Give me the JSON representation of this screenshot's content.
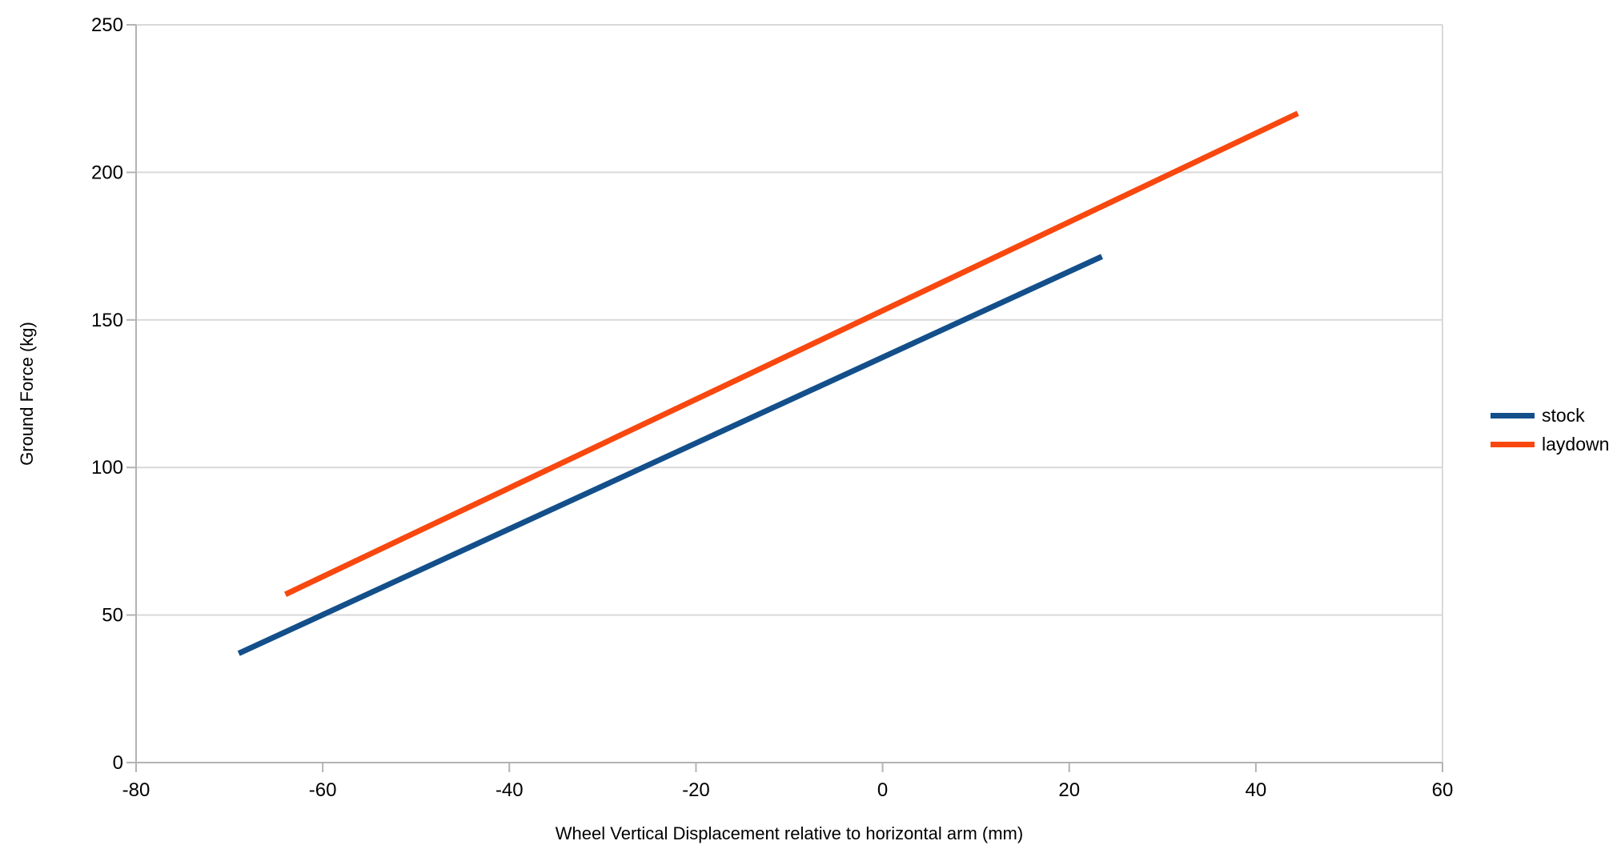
{
  "chart_data": {
    "type": "line",
    "title": "",
    "xlabel": "Wheel Vertical Displacement relative to horizontal arm (mm)",
    "ylabel": "Ground Force (kg)",
    "xlim": [
      -80,
      60
    ],
    "ylim": [
      0,
      250
    ],
    "x_ticks": [
      -80,
      -60,
      -40,
      -20,
      0,
      20,
      40,
      60
    ],
    "y_ticks": [
      0,
      50,
      100,
      150,
      200,
      250
    ],
    "grid": "horizontal-only",
    "legend_position": "right",
    "legend_entries": [
      "stock",
      "laydown"
    ],
    "series": [
      {
        "name": "stock",
        "color": "#134f8a",
        "points": [
          [
            -69,
            37
          ],
          [
            23.5,
            171.5
          ]
        ]
      },
      {
        "name": "laydown",
        "color": "#f8480f",
        "points": [
          [
            -64,
            57
          ],
          [
            44.5,
            220
          ]
        ]
      }
    ],
    "line_width": 7,
    "colors": {
      "background": "#ffffff",
      "gridline": "#d9d9d9",
      "axis": "#b3b3b3",
      "tick_text": "#000000"
    }
  }
}
